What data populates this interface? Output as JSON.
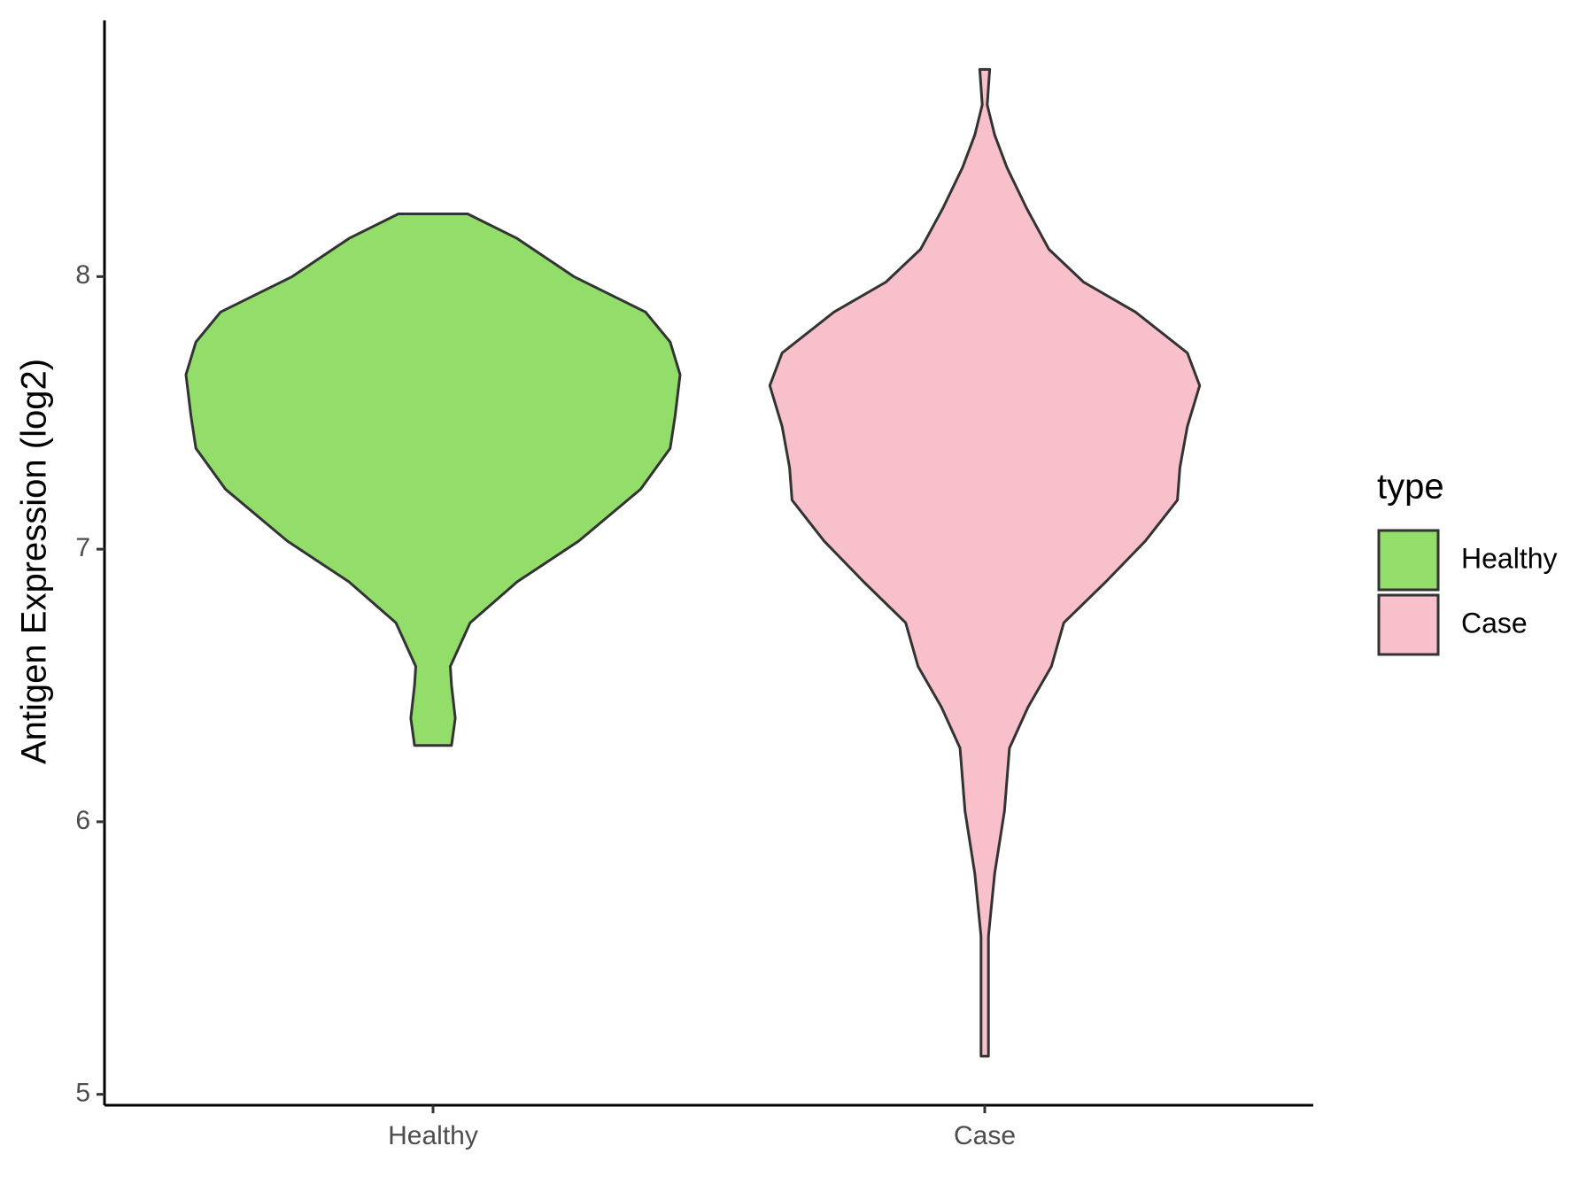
{
  "chart_data": {
    "type": "violin",
    "y_label": "Antigen Expression (log2)",
    "categories": [
      "Healthy",
      "Case"
    ],
    "ylim": [
      4.96,
      8.94
    ],
    "yticks": [
      5,
      6,
      7,
      8
    ],
    "legend_title": "type",
    "legend_position": "right",
    "series": [
      {
        "name": "Healthy",
        "color": "#93dd6b",
        "y": [
          8.23,
          8.14,
          8.0,
          7.87,
          7.76,
          7.64,
          7.49,
          7.37,
          7.22,
          7.03,
          6.88,
          6.73,
          6.57,
          6.5,
          6.38,
          6.28
        ],
        "density": [
          0.14,
          0.34,
          0.57,
          0.86,
          0.96,
          1.0,
          0.98,
          0.96,
          0.84,
          0.59,
          0.34,
          0.15,
          0.07,
          0.075,
          0.09,
          0.075
        ]
      },
      {
        "name": "Case",
        "color": "#f7c0cb",
        "y": [
          8.76,
          8.63,
          8.52,
          8.4,
          8.25,
          8.1,
          7.98,
          7.87,
          7.72,
          7.6,
          7.45,
          7.3,
          7.18,
          7.03,
          6.88,
          6.73,
          6.57,
          6.42,
          6.27,
          6.04,
          5.81,
          5.58,
          5.35,
          5.14
        ],
        "density": [
          0.02,
          0.01,
          0.04,
          0.09,
          0.17,
          0.26,
          0.4,
          0.61,
          0.82,
          0.87,
          0.82,
          0.79,
          0.78,
          0.65,
          0.49,
          0.32,
          0.27,
          0.175,
          0.1,
          0.08,
          0.04,
          0.015,
          0.015,
          0.015
        ]
      }
    ]
  }
}
